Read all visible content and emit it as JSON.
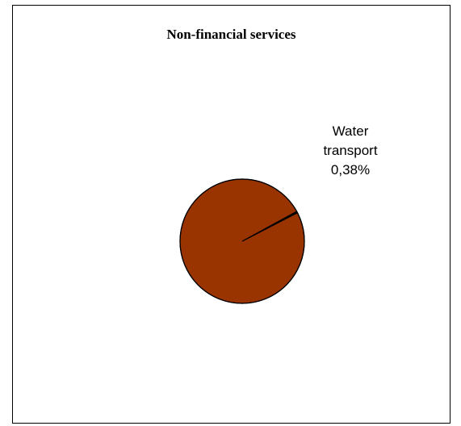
{
  "chart_data": {
    "type": "pie",
    "title": "Non-financial services",
    "slices": [
      {
        "name": "Water transport",
        "value": 0.38,
        "label_line1": "Water",
        "label_line2": "transport",
        "label_value": "0,38%",
        "color": "#000000"
      },
      {
        "name": "",
        "value": 99.62,
        "color": "#993300"
      }
    ],
    "legend": "none"
  }
}
